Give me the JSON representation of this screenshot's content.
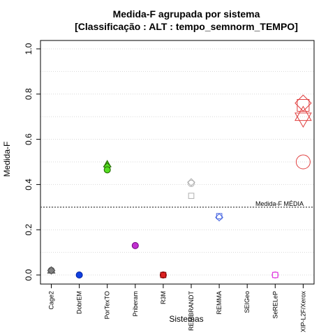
{
  "chart_data": {
    "type": "scatter",
    "title_line1": "Medida-F agrupada por sistema",
    "title_line2": "[Classificação : ALT : tempo_semnorm_TEMPO]",
    "xlabel": "Sistemas",
    "ylabel": "Medida-F",
    "ylim": [
      0,
      1
    ],
    "yticks": [
      "0.0",
      "0.2",
      "0.4",
      "0.6",
      "0.8",
      "1.0"
    ],
    "ytick_values": [
      0,
      0.2,
      0.4,
      0.6,
      0.8,
      1.0
    ],
    "grid": true,
    "categories": [
      "Cage2",
      "DobrEM",
      "PorTexTO",
      "Priberam",
      "R3M",
      "REMBRANDT",
      "REMMA",
      "SEIGeo",
      "SeRELeP",
      "XIP-L2F/Xerox"
    ],
    "reference_line": {
      "value": 0.3,
      "label": "Medida-F MÉDIA"
    },
    "points": [
      {
        "category": "Cage2",
        "y": 0.02,
        "shape": "circle",
        "fill": "#808080",
        "stroke": "#505050"
      },
      {
        "category": "Cage2",
        "y": 0.02,
        "shape": "triangle-up",
        "fill": "#808080",
        "stroke": "#505050"
      },
      {
        "category": "Cage2",
        "y": 0.02,
        "shape": "diamond",
        "fill": "#808080",
        "stroke": "#505050"
      },
      {
        "category": "DobrEM",
        "y": 0.0,
        "shape": "circle",
        "fill": "#1040e0",
        "stroke": "#0020a0"
      },
      {
        "category": "PorTexTO",
        "y": 0.49,
        "shape": "triangle-up",
        "fill": "#55dd22",
        "stroke": "#226600"
      },
      {
        "category": "PorTexTO",
        "y": 0.48,
        "shape": "diamond",
        "fill": "#55dd22",
        "stroke": "#226600"
      },
      {
        "category": "PorTexTO",
        "y": 0.465,
        "shape": "circle",
        "fill": "#55dd22",
        "stroke": "#226600"
      },
      {
        "category": "Priberam",
        "y": 0.13,
        "shape": "circle",
        "fill": "#c030d0",
        "stroke": "#700080"
      },
      {
        "category": "R3M",
        "y": 0.0,
        "shape": "circle",
        "fill": "#dd2020",
        "stroke": "#800000"
      },
      {
        "category": "R3M",
        "y": 0.0,
        "shape": "square",
        "fill": "#dd2020",
        "stroke": "#800000"
      },
      {
        "category": "REMBRANDT",
        "y": 0.41,
        "shape": "open-diamond",
        "fill": "none",
        "stroke": "#b0b0b0"
      },
      {
        "category": "REMBRANDT",
        "y": 0.405,
        "shape": "open-circle",
        "fill": "none",
        "stroke": "#b0b0b0"
      },
      {
        "category": "REMBRANDT",
        "y": 0.35,
        "shape": "open-square",
        "fill": "none",
        "stroke": "#b0b0b0"
      },
      {
        "category": "REMMA",
        "y": 0.26,
        "shape": "open-square",
        "fill": "none",
        "stroke": "#4060e0"
      },
      {
        "category": "REMMA",
        "y": 0.255,
        "shape": "open-diamond",
        "fill": "none",
        "stroke": "#4060e0"
      },
      {
        "category": "SeRELeP",
        "y": 0.0,
        "shape": "open-square",
        "fill": "none",
        "stroke": "#e040e0"
      },
      {
        "category": "SeRELeP",
        "y": 0.0,
        "shape": "open-circle",
        "fill": "none",
        "stroke": "#e040e0"
      },
      {
        "category": "XIP-L2F/Xerox",
        "y": 0.76,
        "shape": "open-diamond-large",
        "fill": "none",
        "stroke": "#e04040"
      },
      {
        "category": "XIP-L2F/Xerox",
        "y": 0.75,
        "shape": "open-square-large",
        "fill": "none",
        "stroke": "#e04040"
      },
      {
        "category": "XIP-L2F/Xerox",
        "y": 0.71,
        "shape": "open-triangle-up-large",
        "fill": "none",
        "stroke": "#e04040"
      },
      {
        "category": "XIP-L2F/Xerox",
        "y": 0.69,
        "shape": "open-triangle-down-large",
        "fill": "none",
        "stroke": "#e04040"
      },
      {
        "category": "XIP-L2F/Xerox",
        "y": 0.5,
        "shape": "open-circle-large",
        "fill": "none",
        "stroke": "#e04040"
      }
    ]
  }
}
